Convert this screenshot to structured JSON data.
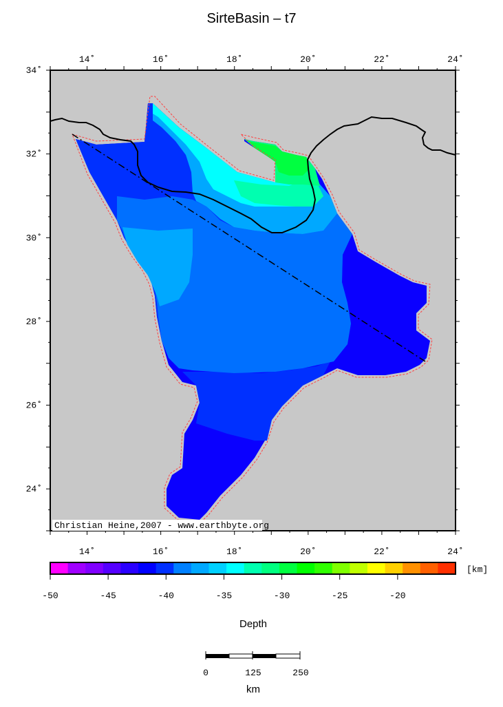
{
  "title": "SirteBasin – t7",
  "axes": {
    "lon_ticks": [
      {
        "value": 14,
        "label": "14˚"
      },
      {
        "value": 16,
        "label": "16˚"
      },
      {
        "value": 18,
        "label": "18˚"
      },
      {
        "value": 20,
        "label": "20˚"
      },
      {
        "value": 22,
        "label": "22˚"
      },
      {
        "value": 24,
        "label": "24˚"
      }
    ],
    "lat_ticks": [
      {
        "value": 34,
        "label": "34˚"
      },
      {
        "value": 32,
        "label": "32˚"
      },
      {
        "value": 30,
        "label": "30˚"
      },
      {
        "value": 28,
        "label": "28˚"
      },
      {
        "value": 26,
        "label": "26˚"
      },
      {
        "value": 24,
        "label": "24˚"
      }
    ],
    "lon_range": [
      13,
      24
    ],
    "lat_range": [
      23,
      34
    ]
  },
  "credit": "Christian Heine,2007 - www.earthbyte.org",
  "colorbar": {
    "label": "Depth",
    "unit": "[km]",
    "ticks": [
      "-50",
      "-45",
      "-40",
      "-35",
      "-30",
      "-25",
      "-20"
    ],
    "range": [
      -50,
      -15
    ],
    "colors": [
      "#ff00ff",
      "#a000ff",
      "#8000ff",
      "#5500ff",
      "#2a00ff",
      "#0000ff",
      "#0030ff",
      "#0080ff",
      "#00a8ff",
      "#00d0ff",
      "#00ffff",
      "#00ffb0",
      "#00ff80",
      "#00ff40",
      "#00ff00",
      "#30ff00",
      "#80ff00",
      "#c0ff00",
      "#ffff00",
      "#ffd000",
      "#ff9000",
      "#ff6000",
      "#ff3000"
    ]
  },
  "scalebar": {
    "labels": [
      "0",
      "125",
      "250"
    ],
    "unit": "km"
  },
  "colors": {
    "background": "#c8c8c8",
    "outline": "#ff4040",
    "coast": "#000000"
  }
}
